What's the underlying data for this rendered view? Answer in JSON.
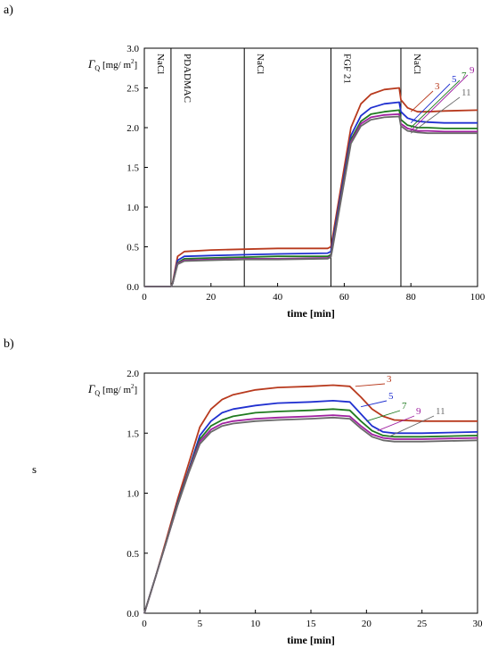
{
  "figure": {
    "panel_a_label": "a)",
    "panel_b_label": "b)",
    "stray_text": "s"
  },
  "chart_data": [
    {
      "type": "line",
      "panel": "a",
      "xlabel": "time [min]",
      "ylabel": "Γ_Q [mg/ m²]",
      "ylabel_main": "Γ",
      "ylabel_sub": "Q",
      "ylabel_unit": " [mg/ m",
      "ylabel_sup": "2",
      "ylabel_close": "]",
      "xlim": [
        0,
        100
      ],
      "ylim": [
        0,
        3.0
      ],
      "xticks": [
        0,
        20,
        40,
        60,
        80,
        100
      ],
      "yticks": [
        "0.0",
        "0.5",
        "1.0",
        "1.5",
        "2.0",
        "2.5",
        "3.0"
      ],
      "grid": false,
      "phase_lines_x": [
        8,
        30,
        56,
        77
      ],
      "phase_labels": [
        {
          "text": "NaCl",
          "x": 4
        },
        {
          "text": "PDADMAC",
          "x": 12
        },
        {
          "text": "NaCl",
          "x": 34
        },
        {
          "text": "FGF 21",
          "x": 60
        },
        {
          "text": "NaCl",
          "x": 81
        }
      ],
      "series": [
        {
          "name": "3",
          "color": "#b83a1e",
          "x": [
            0,
            8,
            8.5,
            10,
            12,
            20,
            30,
            40,
            55,
            56,
            56.5,
            62,
            65,
            68,
            72,
            76.5,
            77,
            79,
            82,
            85,
            90,
            100
          ],
          "y": [
            0,
            0,
            0.05,
            0.38,
            0.44,
            0.46,
            0.47,
            0.48,
            0.48,
            0.5,
            0.62,
            2.0,
            2.3,
            2.42,
            2.48,
            2.5,
            2.35,
            2.25,
            2.2,
            2.2,
            2.21,
            2.22
          ]
        },
        {
          "name": "5",
          "color": "#2030d0",
          "x": [
            0,
            8,
            8.5,
            10,
            12,
            20,
            30,
            40,
            55,
            56,
            56.5,
            62,
            65,
            68,
            72,
            76.5,
            77,
            79,
            82,
            85,
            90,
            100
          ],
          "y": [
            0,
            0,
            0.04,
            0.33,
            0.38,
            0.39,
            0.4,
            0.41,
            0.42,
            0.44,
            0.56,
            1.9,
            2.15,
            2.25,
            2.3,
            2.32,
            2.2,
            2.12,
            2.08,
            2.07,
            2.06,
            2.06
          ]
        },
        {
          "name": "7",
          "color": "#1f7a1f",
          "x": [
            0,
            8,
            8.5,
            10,
            12,
            20,
            30,
            40,
            55,
            56,
            56.5,
            62,
            65,
            68,
            72,
            76.5,
            77,
            79,
            82,
            85,
            90,
            100
          ],
          "y": [
            0,
            0,
            0.04,
            0.3,
            0.35,
            0.36,
            0.37,
            0.38,
            0.38,
            0.4,
            0.52,
            1.85,
            2.08,
            2.17,
            2.2,
            2.22,
            2.1,
            2.03,
            2.0,
            2.0,
            1.99,
            1.99
          ]
        },
        {
          "name": "9",
          "color": "#a020a0",
          "x": [
            0,
            8,
            8.5,
            10,
            12,
            20,
            30,
            40,
            55,
            56,
            56.5,
            62,
            65,
            68,
            72,
            76.5,
            77,
            79,
            82,
            85,
            90,
            100
          ],
          "y": [
            0,
            0,
            0.04,
            0.29,
            0.33,
            0.34,
            0.35,
            0.35,
            0.36,
            0.38,
            0.5,
            1.82,
            2.05,
            2.13,
            2.16,
            2.17,
            2.05,
            1.99,
            1.96,
            1.96,
            1.95,
            1.95
          ]
        },
        {
          "name": "11",
          "color": "#6a6a6a",
          "x": [
            0,
            8,
            8.5,
            10,
            12,
            20,
            30,
            40,
            55,
            56,
            56.5,
            62,
            65,
            68,
            72,
            76.5,
            77,
            79,
            82,
            85,
            90,
            100
          ],
          "y": [
            0,
            0,
            0.04,
            0.28,
            0.32,
            0.33,
            0.34,
            0.34,
            0.35,
            0.37,
            0.48,
            1.8,
            2.02,
            2.1,
            2.13,
            2.14,
            2.02,
            1.96,
            1.94,
            1.93,
            1.93,
            1.93
          ]
        }
      ]
    },
    {
      "type": "line",
      "panel": "b",
      "xlabel": "time [min]",
      "ylabel": "Γ_Q [mg/ m²]",
      "ylabel_main": "Γ",
      "ylabel_sub": "Q",
      "ylabel_unit": " [mg/ m",
      "ylabel_sup": "2",
      "ylabel_close": "]",
      "xlim": [
        0,
        30
      ],
      "ylim": [
        0,
        2.0
      ],
      "xticks": [
        0,
        5,
        10,
        15,
        20,
        25,
        30
      ],
      "yticks": [
        "0.0",
        "0.5",
        "1.0",
        "1.5",
        "2.0"
      ],
      "grid": false,
      "series": [
        {
          "name": "3",
          "color": "#b83a1e",
          "x": [
            0,
            1,
            2,
            3,
            4,
            5,
            6,
            7,
            8,
            10,
            12,
            15,
            17,
            18.5,
            19.5,
            20.5,
            21.5,
            22.5,
            25,
            30
          ],
          "y": [
            0,
            0.3,
            0.62,
            0.95,
            1.25,
            1.55,
            1.7,
            1.78,
            1.82,
            1.86,
            1.88,
            1.89,
            1.9,
            1.89,
            1.8,
            1.7,
            1.64,
            1.61,
            1.6,
            1.6
          ]
        },
        {
          "name": "5",
          "color": "#2030d0",
          "x": [
            0,
            1,
            2,
            3,
            4,
            5,
            6,
            7,
            8,
            10,
            12,
            15,
            17,
            18.5,
            19.5,
            20.5,
            21.5,
            22.5,
            25,
            30
          ],
          "y": [
            0,
            0.3,
            0.6,
            0.92,
            1.2,
            1.48,
            1.6,
            1.67,
            1.7,
            1.73,
            1.75,
            1.76,
            1.77,
            1.76,
            1.66,
            1.56,
            1.51,
            1.5,
            1.5,
            1.51
          ]
        },
        {
          "name": "7",
          "color": "#1f7a1f",
          "x": [
            0,
            1,
            2,
            3,
            4,
            5,
            6,
            7,
            8,
            10,
            12,
            15,
            17,
            18.5,
            19.5,
            20.5,
            21.5,
            22.5,
            25,
            30
          ],
          "y": [
            0,
            0.3,
            0.6,
            0.91,
            1.19,
            1.45,
            1.56,
            1.61,
            1.64,
            1.67,
            1.68,
            1.69,
            1.7,
            1.69,
            1.6,
            1.52,
            1.48,
            1.47,
            1.47,
            1.48
          ]
        },
        {
          "name": "9",
          "color": "#a020a0",
          "x": [
            0,
            1,
            2,
            3,
            4,
            5,
            6,
            7,
            8,
            10,
            12,
            15,
            17,
            18.5,
            19.5,
            20.5,
            21.5,
            22.5,
            25,
            30
          ],
          "y": [
            0,
            0.3,
            0.6,
            0.9,
            1.18,
            1.43,
            1.53,
            1.58,
            1.6,
            1.62,
            1.63,
            1.64,
            1.65,
            1.64,
            1.56,
            1.49,
            1.46,
            1.45,
            1.45,
            1.46
          ]
        },
        {
          "name": "11",
          "color": "#6a6a6a",
          "x": [
            0,
            1,
            2,
            3,
            4,
            5,
            6,
            7,
            8,
            10,
            12,
            15,
            17,
            18.5,
            19.5,
            20.5,
            21.5,
            22.5,
            25,
            30
          ],
          "y": [
            0,
            0.3,
            0.6,
            0.9,
            1.17,
            1.41,
            1.51,
            1.56,
            1.58,
            1.6,
            1.61,
            1.62,
            1.63,
            1.62,
            1.54,
            1.47,
            1.44,
            1.43,
            1.43,
            1.44
          ]
        }
      ]
    }
  ]
}
